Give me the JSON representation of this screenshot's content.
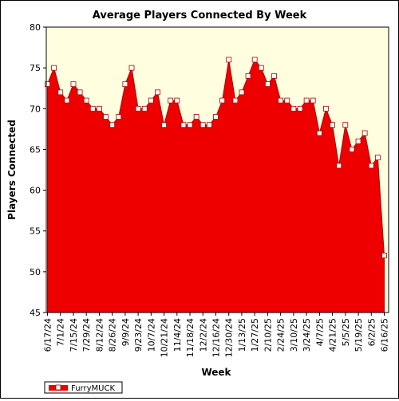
{
  "chart_data": {
    "type": "area",
    "title": "Average Players Connected By Week",
    "xlabel": "Week",
    "ylabel": "Players Connected",
    "ylim": [
      45,
      80
    ],
    "yticks": [
      45,
      50,
      55,
      60,
      65,
      70,
      75,
      80
    ],
    "x_tick_labels": [
      "6/17/24",
      "7/1/24",
      "7/15/24",
      "7/29/24",
      "8/12/24",
      "8/26/24",
      "9/9/24",
      "9/23/24",
      "10/7/24",
      "10/21/24",
      "11/4/24",
      "11/18/24",
      "12/2/24",
      "12/16/24",
      "12/30/24",
      "1/13/25",
      "1/27/25",
      "2/10/25",
      "2/24/25",
      "3/10/25",
      "3/24/25",
      "4/7/25",
      "4/21/25",
      "5/5/25",
      "5/19/25",
      "6/2/25",
      "6/16/25"
    ],
    "grid": false,
    "legend": "bottom-left",
    "background_color": "#ffffe0",
    "series": [
      {
        "name": "FurryMUCK",
        "color": "#ee0000",
        "values": [
          73,
          75,
          72,
          71,
          73,
          72,
          71,
          70,
          70,
          69,
          68,
          69,
          73,
          75,
          70,
          70,
          71,
          72,
          68,
          71,
          71,
          68,
          68,
          69,
          68,
          68,
          69,
          71,
          76,
          71,
          72,
          74,
          76,
          75,
          73,
          74,
          71,
          71,
          70,
          70,
          71,
          71,
          67,
          70,
          68,
          63,
          68,
          65,
          66,
          67,
          63,
          64,
          52
        ]
      }
    ]
  }
}
